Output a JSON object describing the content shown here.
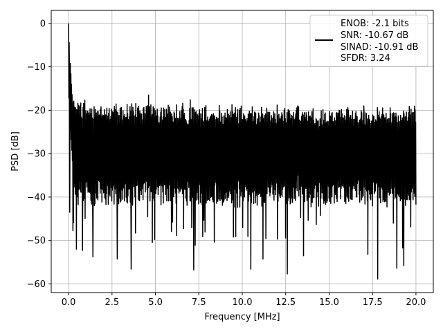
{
  "chart_data": {
    "type": "line",
    "title": "",
    "xlabel": "Frequency [MHz]",
    "ylabel": "PSD [dB]",
    "xlim": [
      -1.0,
      21.0
    ],
    "ylim": [
      -62,
      3
    ],
    "xticks": [
      0.0,
      2.5,
      5.0,
      7.5,
      10.0,
      12.5,
      15.0,
      17.5,
      20.0
    ],
    "xtick_labels": [
      "0.0",
      "2.5",
      "5.0",
      "7.5",
      "10.0",
      "12.5",
      "15.0",
      "17.5",
      "20.0"
    ],
    "yticks": [
      0,
      -10,
      -20,
      -30,
      -40,
      -50,
      -60
    ],
    "ytick_labels": [
      "0",
      "−10",
      "−20",
      "−30",
      "−40",
      "−50",
      "−60"
    ],
    "grid": true,
    "legend_position": "top-right",
    "series": [
      {
        "name": "ENOB: -2.1 bits",
        "legend_lines": [
          "ENOB: -2.1 bits",
          "SNR: -10.67 dB",
          "SINAD: -10.91 dB",
          "SFDR: 3.24"
        ],
        "color": "#000000",
        "x_start": 0.0,
        "x_end": 20.0,
        "points": 1200,
        "noise_floor_db": -30,
        "upper_envelope_db": -22,
        "lower_envelope_db": -40,
        "peak": {
          "x": 0.0,
          "y": 0.0
        },
        "notable_dips": [
          {
            "x": 0.07,
            "y": -43.5
          },
          {
            "x": 0.45,
            "y": -52.0
          },
          {
            "x": 0.8,
            "y": -52.3
          },
          {
            "x": 1.4,
            "y": -53.8
          },
          {
            "x": 2.8,
            "y": -54.3
          },
          {
            "x": 3.6,
            "y": -56.6
          },
          {
            "x": 7.2,
            "y": -56.8
          },
          {
            "x": 10.5,
            "y": -56.6
          },
          {
            "x": 11.2,
            "y": -54.3
          },
          {
            "x": 12.6,
            "y": -57.7
          },
          {
            "x": 17.8,
            "y": -58.9
          },
          {
            "x": 18.9,
            "y": -56.4
          },
          {
            "x": 19.3,
            "y": -55.8
          }
        ],
        "notable_peaks": [
          {
            "x": 0.05,
            "y": -11.0
          },
          {
            "x": 0.3,
            "y": -17.9
          },
          {
            "x": 4.6,
            "y": -16.5
          },
          {
            "x": 7.0,
            "y": -17.6
          },
          {
            "x": 13.2,
            "y": -19.0
          },
          {
            "x": 17.0,
            "y": -19.0
          }
        ]
      }
    ]
  }
}
